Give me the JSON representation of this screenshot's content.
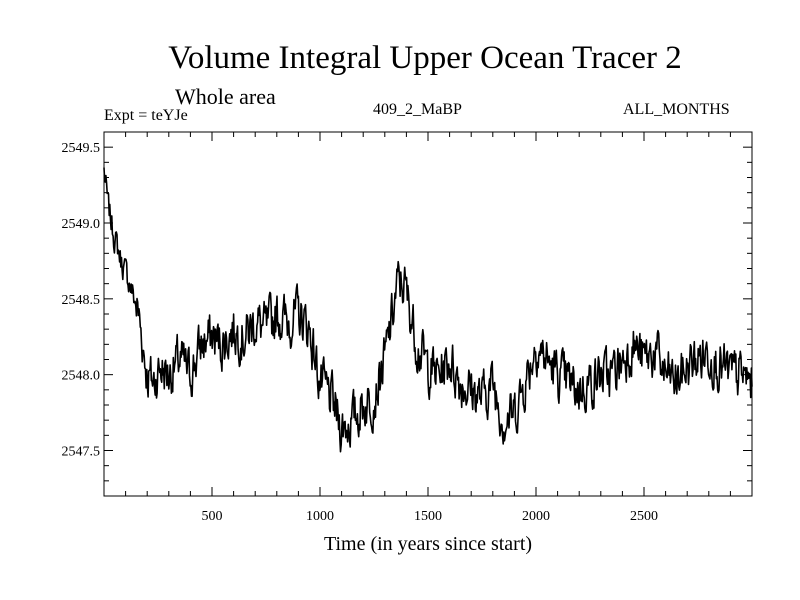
{
  "header": {
    "title": "Volume Integral Upper Ocean Tracer 2",
    "subtitle": "Whole area",
    "expt": "Expt = teYJe",
    "center_label": "409_2_MaBP",
    "months_label": "ALL_MONTHS"
  },
  "chart_data": {
    "type": "line",
    "title": "Volume Integral Upper Ocean Tracer 2",
    "subtitle": "Whole area",
    "xlabel": "Time (in years since start)",
    "ylabel": "",
    "xlim": [
      0,
      3000
    ],
    "ylim": [
      2547.2,
      2549.6
    ],
    "x_ticks": [
      500,
      1000,
      1500,
      2000,
      2500
    ],
    "x_tick_labels": [
      "500",
      "1000",
      "1500",
      "2000",
      "2500"
    ],
    "y_ticks": [
      2547.5,
      2548.0,
      2548.5,
      2549.0,
      2549.5
    ],
    "y_tick_labels": [
      "2547.5",
      "2548.0",
      "2548.5",
      "2549.0",
      "2549.5"
    ],
    "grid": false,
    "line_color": "#000000",
    "series": [
      {
        "name": "Volume Integral Upper Ocean Tracer 2",
        "x": [
          0,
          20,
          50,
          80,
          120,
          160,
          200,
          230,
          260,
          300,
          350,
          400,
          450,
          500,
          550,
          600,
          650,
          700,
          750,
          800,
          850,
          900,
          950,
          1000,
          1050,
          1100,
          1150,
          1200,
          1250,
          1300,
          1330,
          1360,
          1390,
          1420,
          1450,
          1500,
          1550,
          1600,
          1650,
          1700,
          1750,
          1800,
          1850,
          1900,
          1950,
          2000,
          2050,
          2100,
          2150,
          2200,
          2250,
          2300,
          2350,
          2400,
          2450,
          2500,
          2550,
          2600,
          2650,
          2700,
          2750,
          2800,
          2850,
          2900,
          2950,
          3000
        ],
        "values": [
          2549.35,
          2549.1,
          2548.9,
          2548.75,
          2548.6,
          2548.4,
          2548.0,
          2547.95,
          2548.05,
          2548.0,
          2548.1,
          2548.0,
          2548.2,
          2548.25,
          2548.2,
          2548.3,
          2548.25,
          2548.35,
          2548.3,
          2548.4,
          2548.35,
          2548.4,
          2548.3,
          2547.95,
          2547.85,
          2547.65,
          2547.7,
          2547.8,
          2547.85,
          2548.1,
          2548.35,
          2548.6,
          2548.6,
          2548.4,
          2548.2,
          2548.05,
          2548.0,
          2548.1,
          2547.95,
          2547.9,
          2547.85,
          2547.95,
          2547.7,
          2547.75,
          2547.95,
          2548.2,
          2548.1,
          2548.0,
          2547.95,
          2547.9,
          2547.95,
          2548.0,
          2548.0,
          2548.1,
          2548.2,
          2548.1,
          2548.15,
          2548.0,
          2547.95,
          2548.05,
          2548.1,
          2548.15,
          2548.05,
          2548.0,
          2548.0,
          2547.95
        ]
      }
    ]
  }
}
